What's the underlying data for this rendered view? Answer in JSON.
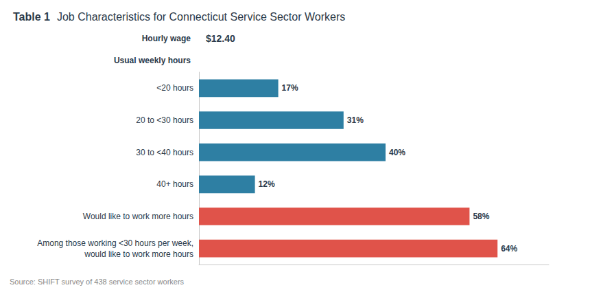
{
  "chart_data": {
    "type": "bar",
    "orientation": "horizontal",
    "title": "Table 1",
    "subtitle": "Job Characteristics for Connecticut Service Sector Workers",
    "categories": [
      "<20 hours",
      "20 to <30 hours",
      "30 to <40 hours",
      "40+ hours",
      "Would like to work more hours",
      "Among those working <30 hours per week,\nwould like to work more hours"
    ],
    "values": [
      17,
      31,
      40,
      12,
      58,
      64
    ],
    "value_labels": [
      "17%",
      "31%",
      "40%",
      "12%",
      "58%",
      "64%"
    ],
    "colors": [
      "#2e7fa3",
      "#2e7fa3",
      "#2e7fa3",
      "#2e7fa3",
      "#e0534a",
      "#e0534a"
    ],
    "xlim": [
      0,
      75
    ],
    "data_labels": true,
    "tick_labels": "y",
    "grid": false,
    "annotations": [
      {
        "label": "Hourly wage",
        "value_label": "$12.40"
      },
      {
        "label": "Usual weekly hours"
      }
    ],
    "source": "Source: SHIFT survey of 438 service sector workers"
  }
}
